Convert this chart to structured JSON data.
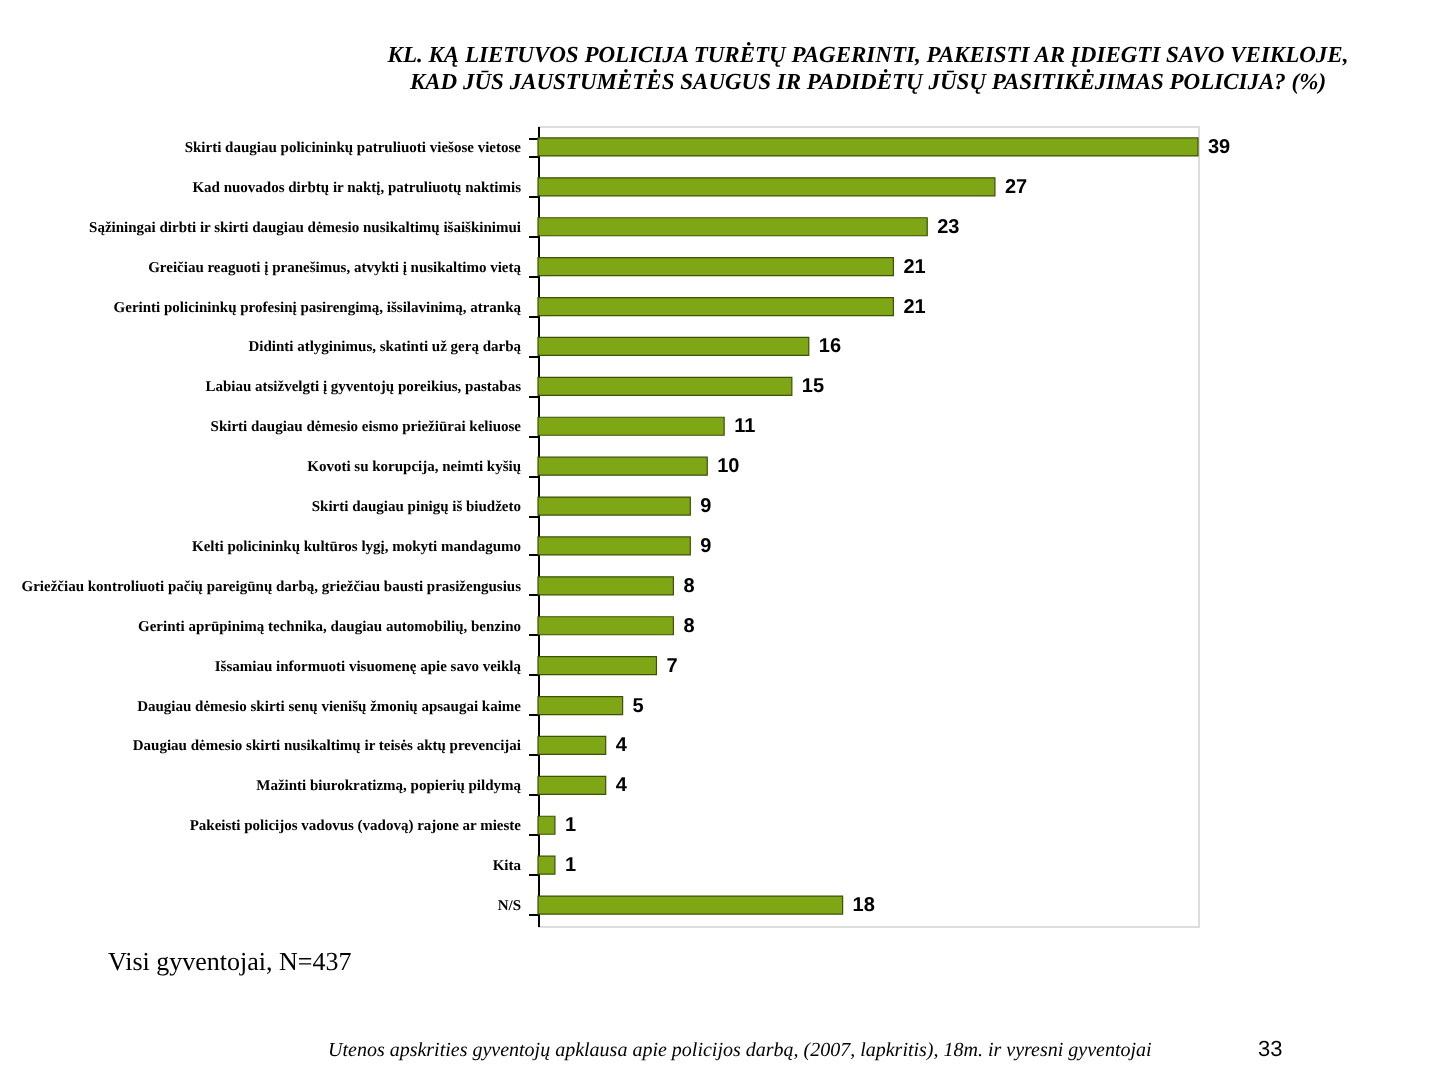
{
  "chart_data": {
    "type": "bar",
    "orientation": "horizontal",
    "title": [
      "KL. KĄ LIETUVOS POLICIJA TURĖTŲ PAGERINTI, PAKEISTI AR ĮDIEGTI  SAVO VEIKLOJE,",
      "KAD JŪS JAUSTUMĖTĖS SAUGUS IR PADIDĖTŲ JŪSŲ PASITIKĖJIMAS POLICIJA? (%)"
    ],
    "categories": [
      "Skirti daugiau policininkų patruliuoti viešose vietose",
      "Kad nuovados dirbtų ir naktį, patruliuotų naktimis",
      "Sąžiningai dirbti ir skirti daugiau dėmesio nusikaltimų išaiškinimui",
      "Greičiau reaguoti į pranešimus, atvykti į nusikaltimo vietą",
      "Gerinti policininkų profesinį pasirengimą, išsilavinimą, atranką",
      "Didinti atlyginimus, skatinti už gerą darbą",
      "Labiau atsižvelgti į gyventojų poreikius, pastabas",
      "Skirti daugiau dėmesio eismo priežiūrai keliuose",
      "Kovoti su korupcija, neimti kyšių",
      "Skirti daugiau pinigų iš biudžeto",
      "Kelti policininkų kultūros lygį, mokyti mandagumo",
      "Griežčiau kontroliuoti pačių pareigūnų darbą, griežčiau bausti prasižengusius",
      "Gerinti aprūpinimą technika, daugiau automobilių, benzino",
      "Išsamiau informuoti visuomenę apie savo veiklą",
      "Daugiau dėmesio skirti senų vienišų žmonių apsaugai kaime",
      "Daugiau dėmesio skirti nusikaltimų ir teisės aktų prevencijai",
      "Mažinti biurokratizmą, popierių pildymą",
      "Pakeisti policijos vadovus (vadovą) rajone ar mieste",
      "Kita",
      "N/S"
    ],
    "values": [
      39,
      27,
      23,
      21,
      21,
      16,
      15,
      11,
      10,
      9,
      9,
      8,
      8,
      7,
      5,
      4,
      4,
      1,
      1,
      18
    ],
    "color": "#7fa614",
    "data_labels": true,
    "grid": false,
    "tick_labels": "y",
    "annotations": [
      "Visi gyventojai, N=437",
      "Utenos apskrities gyventojų apklausa apie policijos darbą, (2007, lapkritis), 18m. ir vyresni gyventojai",
      "33"
    ]
  }
}
